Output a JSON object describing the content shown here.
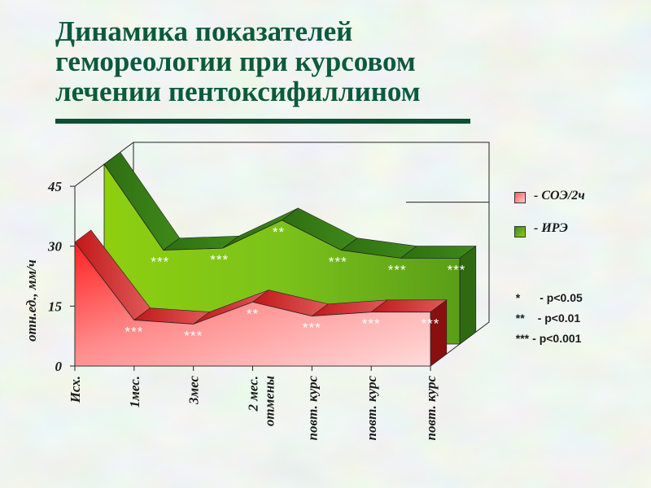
{
  "slide": {
    "title": "Динамика показателей гемореологии при курсовом лечении пентоксифиллином"
  },
  "chart_data": {
    "type": "area",
    "title": "",
    "ylabel": "отн.ед., мм/ч",
    "ylim": [
      0,
      45
    ],
    "yticks": [
      "0",
      "15",
      "30",
      "45"
    ],
    "categories": [
      "Исх.",
      "1мес.",
      "3мес",
      "2 мес. отмены",
      "повт. курс",
      "повт. курс",
      "повт. курс"
    ],
    "series": [
      {
        "name": "- СОЭ/2ч",
        "color": "#e8343a",
        "values": [
          31,
          11.5,
          10.5,
          16,
          12.5,
          13.5,
          13.5
        ],
        "annotations": [
          "",
          "***",
          "***",
          "**",
          "***",
          "***",
          "***"
        ]
      },
      {
        "name": "- ИРЭ",
        "color": "#5a9e1e",
        "values": [
          45,
          23.5,
          24,
          31,
          23.5,
          21.5,
          21.5
        ],
        "annotations": [
          "",
          "***",
          "***",
          "**",
          "***",
          "***",
          "***"
        ]
      }
    ],
    "significance_legend": [
      {
        "stars": "*",
        "text": "- p<0.05"
      },
      {
        "stars": "**",
        "text": "- p<0.01"
      },
      {
        "stars": "***",
        "text": "- p<0.001"
      }
    ]
  }
}
